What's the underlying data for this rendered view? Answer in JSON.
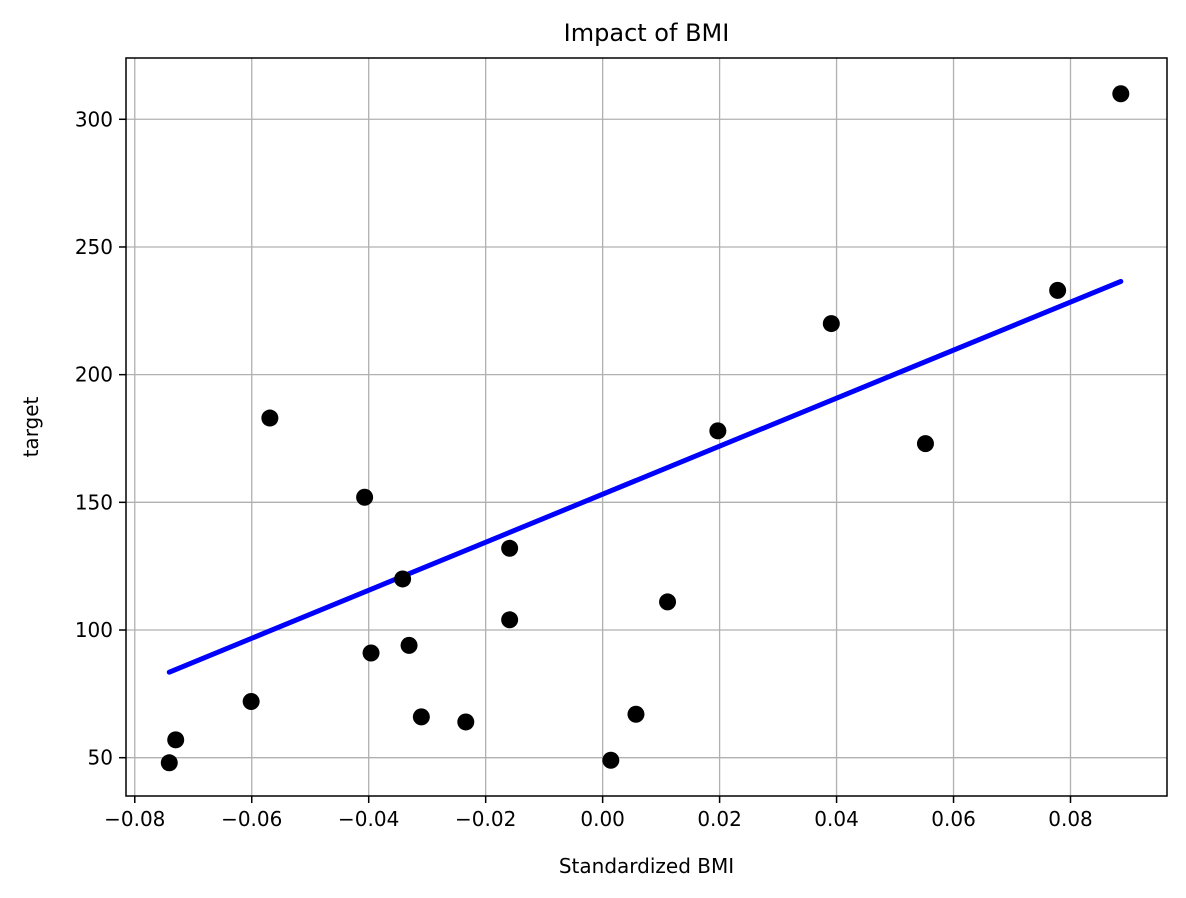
{
  "chart_data": {
    "type": "scatter",
    "title": "Impact of BMI",
    "xlabel": "Standardized BMI",
    "ylabel": "target",
    "xlim": [
      -0.0815,
      0.0965
    ],
    "ylim": [
      35,
      324
    ],
    "grid": true,
    "x_ticks": [
      -0.08,
      -0.06,
      -0.04,
      -0.02,
      0.0,
      0.02,
      0.04,
      0.06,
      0.08
    ],
    "x_tick_labels": [
      "−0.08",
      "−0.06",
      "−0.04",
      "−0.02",
      "0.00",
      "0.02",
      "0.04",
      "0.06",
      "0.08"
    ],
    "y_ticks": [
      50,
      100,
      150,
      200,
      250,
      300
    ],
    "y_tick_labels": [
      "50",
      "100",
      "150",
      "200",
      "250",
      "300"
    ],
    "series": [
      {
        "type": "scatter",
        "color": "#000000",
        "points": [
          [
            -0.0741,
            48
          ],
          [
            -0.073,
            57
          ],
          [
            -0.0601,
            72
          ],
          [
            -0.0569,
            183
          ],
          [
            -0.0407,
            152
          ],
          [
            -0.0396,
            91
          ],
          [
            -0.0342,
            120
          ],
          [
            -0.0331,
            94
          ],
          [
            -0.031,
            66
          ],
          [
            -0.0234,
            64
          ],
          [
            -0.0159,
            132
          ],
          [
            -0.0159,
            104
          ],
          [
            0.0014,
            49
          ],
          [
            0.0057,
            67
          ],
          [
            0.0111,
            111
          ],
          [
            0.0197,
            178
          ],
          [
            0.0391,
            220
          ],
          [
            0.0552,
            173
          ],
          [
            0.0778,
            233
          ],
          [
            0.0886,
            310
          ]
        ]
      },
      {
        "type": "line",
        "color": "#0000ff",
        "points": [
          [
            -0.0741,
            83.5
          ],
          [
            0.0886,
            236.5
          ]
        ]
      }
    ]
  }
}
